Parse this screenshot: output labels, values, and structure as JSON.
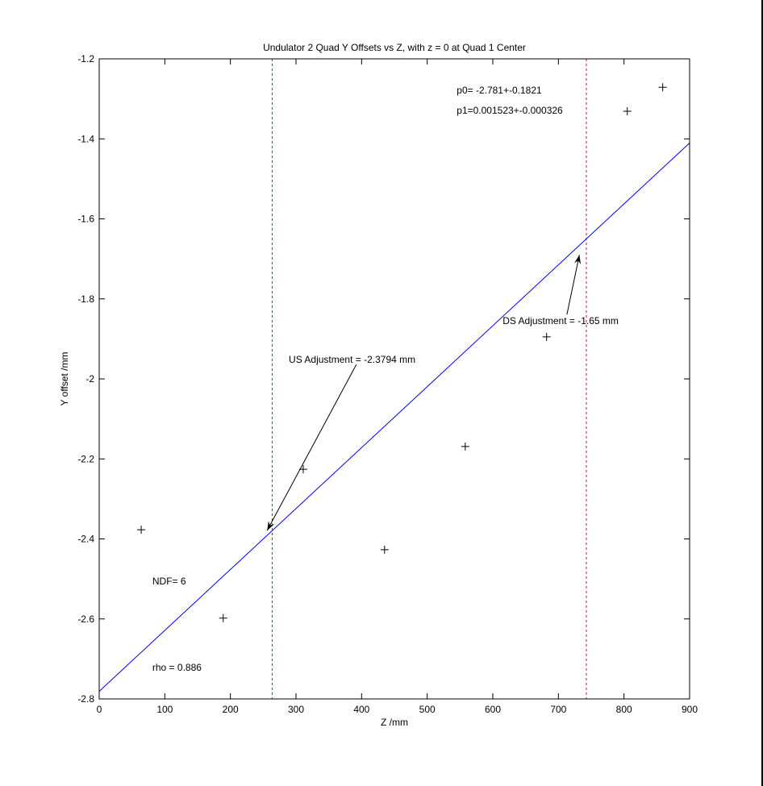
{
  "chart_data": {
    "type": "scatter",
    "title": "Undulator 2 Quad Y Offsets vs Z, with z = 0 at Quad 1 Center",
    "xlabel": "Z /mm",
    "ylabel": "Y offset /mm",
    "xlim": [
      0,
      900
    ],
    "ylim": [
      -2.8,
      -1.2
    ],
    "xticks": [
      0,
      100,
      200,
      300,
      400,
      500,
      600,
      700,
      800,
      900
    ],
    "yticks": [
      -2.8,
      -2.6,
      -2.4,
      -2.2,
      -2,
      -1.8,
      -1.6,
      -1.4,
      -1.2
    ],
    "xtick_labels": [
      "0",
      "100",
      "200",
      "300",
      "400",
      "500",
      "600",
      "700",
      "800",
      "900"
    ],
    "ytick_labels": [
      "-2.8",
      "-2.6",
      "-2.4",
      "-2.2",
      "-2",
      "-1.8",
      "-1.6",
      "-1.4",
      "-1.2"
    ],
    "grid": false,
    "points": {
      "x": [
        64,
        189,
        311,
        435,
        558,
        682,
        805,
        859
      ],
      "y": [
        -2.377,
        -2.598,
        -2.226,
        -2.427,
        -2.169,
        -1.895,
        -1.331,
        -1.271
      ],
      "marker": "+",
      "color": "#000000"
    },
    "fit": {
      "p0": -2.781,
      "p1": 0.001523,
      "color": "#0000ff"
    },
    "vlines": [
      {
        "x": 263.7,
        "color": "#ff0000",
        "style": "dashed"
      },
      {
        "x": 742.6,
        "color": "#ff0000",
        "style": "dashed"
      }
    ],
    "annotations": [
      {
        "text": "p0= -2.781+-0.1821",
        "x": 545,
        "y": -1.279
      },
      {
        "text": "p1=0.001523+-0.000326",
        "x": 545,
        "y": -1.329
      },
      {
        "text": "NDF=    6",
        "x": 81,
        "y": -2.506
      },
      {
        "text": "rho     =  0.886",
        "x": 81,
        "y": -2.721
      },
      {
        "text": "US Adjustment = -2.3794 mm",
        "x": 289,
        "y": -1.952,
        "arrow_from": [
          392,
          -1.964
        ],
        "arrow_to": [
          256,
          -2.379
        ]
      },
      {
        "text": "DS Adjustment = -1.65 mm",
        "x": 615,
        "y": -1.855,
        "arrow_from": [
          713,
          -1.839
        ],
        "arrow_to": [
          732,
          -1.69
        ]
      }
    ]
  }
}
